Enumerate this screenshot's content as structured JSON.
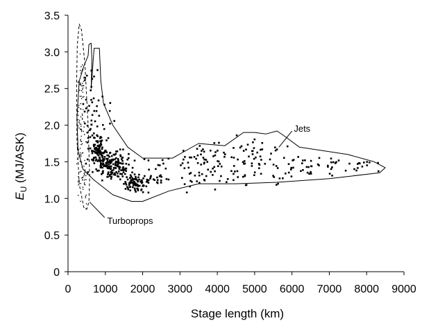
{
  "chart_data": {
    "type": "scatter",
    "title": "",
    "xlabel": "Stage length (km)",
    "ylabel_italic": "E",
    "ylabel_sub": "U",
    "ylabel_rest": " (MJ/ASK)",
    "xlim": [
      0,
      9000
    ],
    "ylim": [
      0,
      3.5
    ],
    "xticks": [
      0,
      1000,
      2000,
      3000,
      4000,
      5000,
      6000,
      7000,
      8000,
      9000
    ],
    "yticks": [
      0,
      0.5,
      1.0,
      1.5,
      2.0,
      2.5,
      3.0,
      3.5
    ],
    "ytick_labels": [
      "0",
      "0.5",
      "1.0",
      "1.5",
      "2.0",
      "2.5",
      "3.0",
      "3.5"
    ],
    "grid": false,
    "annotations": [
      {
        "text": "Jets",
        "x": 6050,
        "y": 1.95
      },
      {
        "text": "Turboprops",
        "x": 1050,
        "y": 0.69
      }
    ],
    "regions": [
      {
        "name": "Jets",
        "style": "solid",
        "outline": [
          [
            540,
            2.95
          ],
          [
            560,
            3.1
          ],
          [
            620,
            3.12
          ],
          [
            640,
            2.9
          ],
          [
            620,
            2.5
          ],
          [
            700,
            3.05
          ],
          [
            840,
            3.05
          ],
          [
            880,
            2.6
          ],
          [
            950,
            2.3
          ],
          [
            1200,
            2.0
          ],
          [
            1600,
            1.7
          ],
          [
            2000,
            1.55
          ],
          [
            2800,
            1.55
          ],
          [
            3500,
            1.75
          ],
          [
            4200,
            1.72
          ],
          [
            4700,
            1.9
          ],
          [
            5000,
            1.9
          ],
          [
            5300,
            1.88
          ],
          [
            5600,
            1.92
          ],
          [
            5800,
            1.85
          ],
          [
            6200,
            1.7
          ],
          [
            7500,
            1.6
          ],
          [
            8200,
            1.5
          ],
          [
            8500,
            1.42
          ],
          [
            8350,
            1.35
          ],
          [
            7000,
            1.27
          ],
          [
            5600,
            1.22
          ],
          [
            4500,
            1.2
          ],
          [
            3500,
            1.2
          ],
          [
            2700,
            1.1
          ],
          [
            2000,
            0.96
          ],
          [
            1700,
            0.96
          ],
          [
            1200,
            1.05
          ],
          [
            700,
            1.25
          ],
          [
            400,
            1.4
          ],
          [
            270,
            1.65
          ],
          [
            240,
            2.1
          ],
          [
            300,
            2.6
          ],
          [
            420,
            2.8
          ],
          [
            540,
            2.95
          ]
        ]
      },
      {
        "name": "Turboprops",
        "style": "dashed",
        "outline": [
          [
            300,
            3.38
          ],
          [
            360,
            3.3
          ],
          [
            450,
            2.85
          ],
          [
            540,
            2.0
          ],
          [
            580,
            1.3
          ],
          [
            560,
            0.95
          ],
          [
            500,
            0.85
          ],
          [
            420,
            0.88
          ],
          [
            300,
            1.2
          ],
          [
            240,
            1.8
          ],
          [
            230,
            2.6
          ],
          [
            250,
            3.1
          ],
          [
            300,
            3.38
          ]
        ]
      }
    ],
    "series": [
      {
        "name": "Jets",
        "marker": "square",
        "clusters": [
          {
            "cx": 1200,
            "cy": 1.45,
            "sx": 260,
            "sy": 0.09,
            "n": 170
          },
          {
            "cx": 820,
            "cy": 1.66,
            "sx": 90,
            "sy": 0.09,
            "n": 70
          },
          {
            "cx": 1800,
            "cy": 1.2,
            "sx": 170,
            "sy": 0.06,
            "n": 85
          },
          {
            "cx": 620,
            "cy": 2.05,
            "sx": 110,
            "sy": 0.45,
            "n": 45
          },
          {
            "cx": 1000,
            "cy": 2.0,
            "sx": 150,
            "sy": 0.22,
            "n": 15
          },
          {
            "cx": 3600,
            "cy": 1.45,
            "sx": 420,
            "sy": 0.16,
            "n": 70
          },
          {
            "cx": 5100,
            "cy": 1.45,
            "sx": 420,
            "sy": 0.16,
            "n": 60
          },
          {
            "cx": 5000,
            "cy": 1.72,
            "sx": 400,
            "sy": 0.08,
            "n": 12
          },
          {
            "cx": 6800,
            "cy": 1.45,
            "sx": 450,
            "sy": 0.09,
            "n": 35
          },
          {
            "cx": 7900,
            "cy": 1.43,
            "sx": 280,
            "sy": 0.05,
            "n": 14
          },
          {
            "cx": 2400,
            "cy": 1.35,
            "sx": 180,
            "sy": 0.12,
            "n": 25
          }
        ]
      },
      {
        "name": "Turboprops",
        "marker": "small-dot",
        "clusters": [
          {
            "cx": 340,
            "cy": 1.85,
            "sx": 55,
            "sy": 0.45,
            "n": 70
          },
          {
            "cx": 380,
            "cy": 2.55,
            "sx": 50,
            "sy": 0.3,
            "n": 25
          },
          {
            "cx": 420,
            "cy": 1.25,
            "sx": 50,
            "sy": 0.15,
            "n": 25
          }
        ]
      }
    ]
  }
}
